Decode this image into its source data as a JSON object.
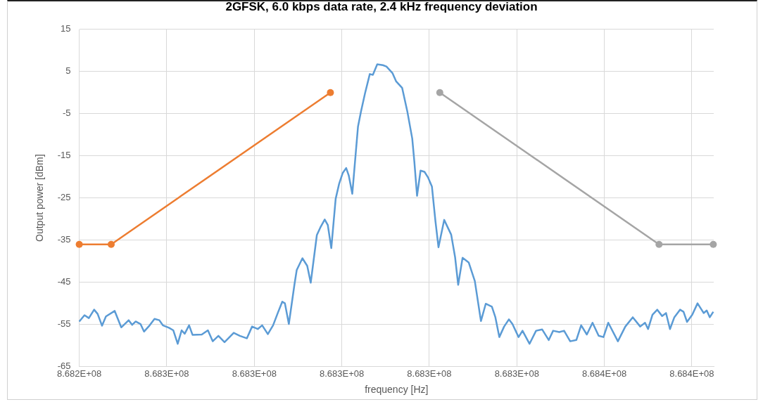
{
  "chart_data": {
    "type": "line",
    "title": "2GFSK, 6.0 kbps data rate, 2.4 kHz frequency deviation",
    "xlabel": "frequency [Hz]",
    "ylabel": "Output power [dBm]",
    "xlim": [
      868240000,
      868385000
    ],
    "xticks": [
      {
        "value": 868240000,
        "label": "8.682E+08"
      },
      {
        "value": 868260000,
        "label": "8.683E+08"
      },
      {
        "value": 868280000,
        "label": "8.683E+08"
      },
      {
        "value": 868300000,
        "label": "8.683E+08"
      },
      {
        "value": 868320000,
        "label": "8.683E+08"
      },
      {
        "value": 868340000,
        "label": "8.683E+08"
      },
      {
        "value": 868360000,
        "label": "8.684E+08"
      },
      {
        "value": 868380000,
        "label": "8.684E+08"
      }
    ],
    "ylim": [
      -65,
      15
    ],
    "yticks": [
      -65,
      -55,
      -45,
      -35,
      -25,
      -15,
      -5,
      5,
      15
    ],
    "grid": true,
    "legend": false,
    "series": [
      {
        "color": "#5b9bd5",
        "marker": "none",
        "x": [
          868240000,
          868241200,
          868242200,
          868243400,
          868244200,
          868245200,
          868246100,
          868248100,
          868249600,
          868251300,
          868252100,
          868252900,
          868254000,
          868254800,
          868256100,
          868257200,
          868258300,
          868259100,
          868260500,
          868261500,
          868262500,
          868263400,
          868264100,
          868265100,
          868265900,
          868268000,
          868269400,
          868270500,
          868271800,
          868273200,
          868275300,
          868276700,
          868278300,
          868279500,
          868280800,
          868281800,
          868283100,
          868284300,
          868285400,
          868286400,
          868287000,
          868287900,
          868289200,
          868289700,
          868291000,
          868292100,
          868292900,
          868294300,
          868295100,
          868296100,
          868296800,
          868297600,
          868298600,
          868299400,
          868300200,
          868301000,
          868301600,
          868302400,
          868303200,
          868303700,
          868304400,
          868305300,
          868306400,
          868307100,
          868308100,
          868308900,
          868309400,
          868310200,
          868311600,
          868312400,
          868313800,
          868315000,
          868316100,
          868316600,
          868317200,
          868318000,
          868318900,
          868319700,
          868320600,
          868321400,
          868322100,
          868323400,
          868325000,
          868325900,
          868326600,
          868327600,
          868329000,
          868330400,
          868331800,
          868332900,
          868334300,
          868335100,
          868336000,
          868337100,
          868338200,
          868339000,
          868340400,
          868341300,
          868342900,
          868344400,
          868345800,
          868347300,
          868348300,
          868349700,
          868350800,
          868352200,
          868353600,
          868354700,
          868356000,
          868357300,
          868358700,
          868359800,
          868360900,
          868363100,
          868364800,
          868366500,
          868368200,
          868369300,
          868370000,
          868371000,
          868372100,
          868373200,
          868374100,
          868375000,
          868376000,
          868377300,
          868378100,
          868378900,
          868380100,
          868381300,
          868382700,
          868383400,
          868384100,
          868384900
        ],
        "values": [
          -54.3,
          -52.8,
          -53.5,
          -51.5,
          -52.5,
          -55.3,
          -53.1,
          -51.8,
          -55.7,
          -54,
          -55.1,
          -54.3,
          -54.9,
          -56.7,
          -55.2,
          -53.7,
          -54,
          -55.2,
          -55.8,
          -56.4,
          -59.6,
          -56.4,
          -57.2,
          -55.2,
          -57.5,
          -57.4,
          -56.4,
          -59,
          -57.7,
          -59.2,
          -57,
          -57.7,
          -58.3,
          -55.5,
          -56.1,
          -55.2,
          -57.3,
          -55.2,
          -52.2,
          -49.6,
          -50,
          -54.9,
          -45.4,
          -42.1,
          -39.3,
          -41.1,
          -45.1,
          -33.8,
          -32,
          -30.1,
          -31.4,
          -36.9,
          -25.2,
          -21.6,
          -19.1,
          -17.9,
          -19.7,
          -24,
          -14.2,
          -8.1,
          -4.4,
          -0.2,
          4.4,
          4.2,
          6.7,
          6.6,
          6.5,
          6.2,
          4.6,
          2.7,
          1.1,
          -4.6,
          -10.9,
          -16.6,
          -24.5,
          -18.5,
          -18.8,
          -20.1,
          -22.3,
          -30.5,
          -36.7,
          -30.2,
          -33.7,
          -39.1,
          -45.6,
          -39.2,
          -40.3,
          -44.7,
          -54.2,
          -50.1,
          -50.8,
          -53.3,
          -58,
          -55.5,
          -53.8,
          -54.9,
          -58,
          -56.5,
          -59.6,
          -56.5,
          -56.2,
          -58.7,
          -56.5,
          -56.8,
          -56.5,
          -59,
          -58.7,
          -55.2,
          -57.4,
          -54.6,
          -57.7,
          -58,
          -54.6,
          -59,
          -55.5,
          -53.3,
          -55.5,
          -54.6,
          -56.1,
          -52.7,
          -51.5,
          -53,
          -52.3,
          -56.1,
          -53.3,
          -51.5,
          -52,
          -54.4,
          -52.7,
          -50,
          -52.3,
          -51.7,
          -53.3,
          -52
        ]
      },
      {
        "color": "#ed7d31",
        "marker": "circle",
        "x": [
          868240000,
          868247300,
          868297400
        ],
        "values": [
          -36,
          -36,
          0
        ]
      },
      {
        "color": "#a5a5a5",
        "marker": "circle",
        "x": [
          868322400,
          868372500,
          868384900
        ],
        "values": [
          0,
          -36,
          -36
        ]
      }
    ]
  }
}
